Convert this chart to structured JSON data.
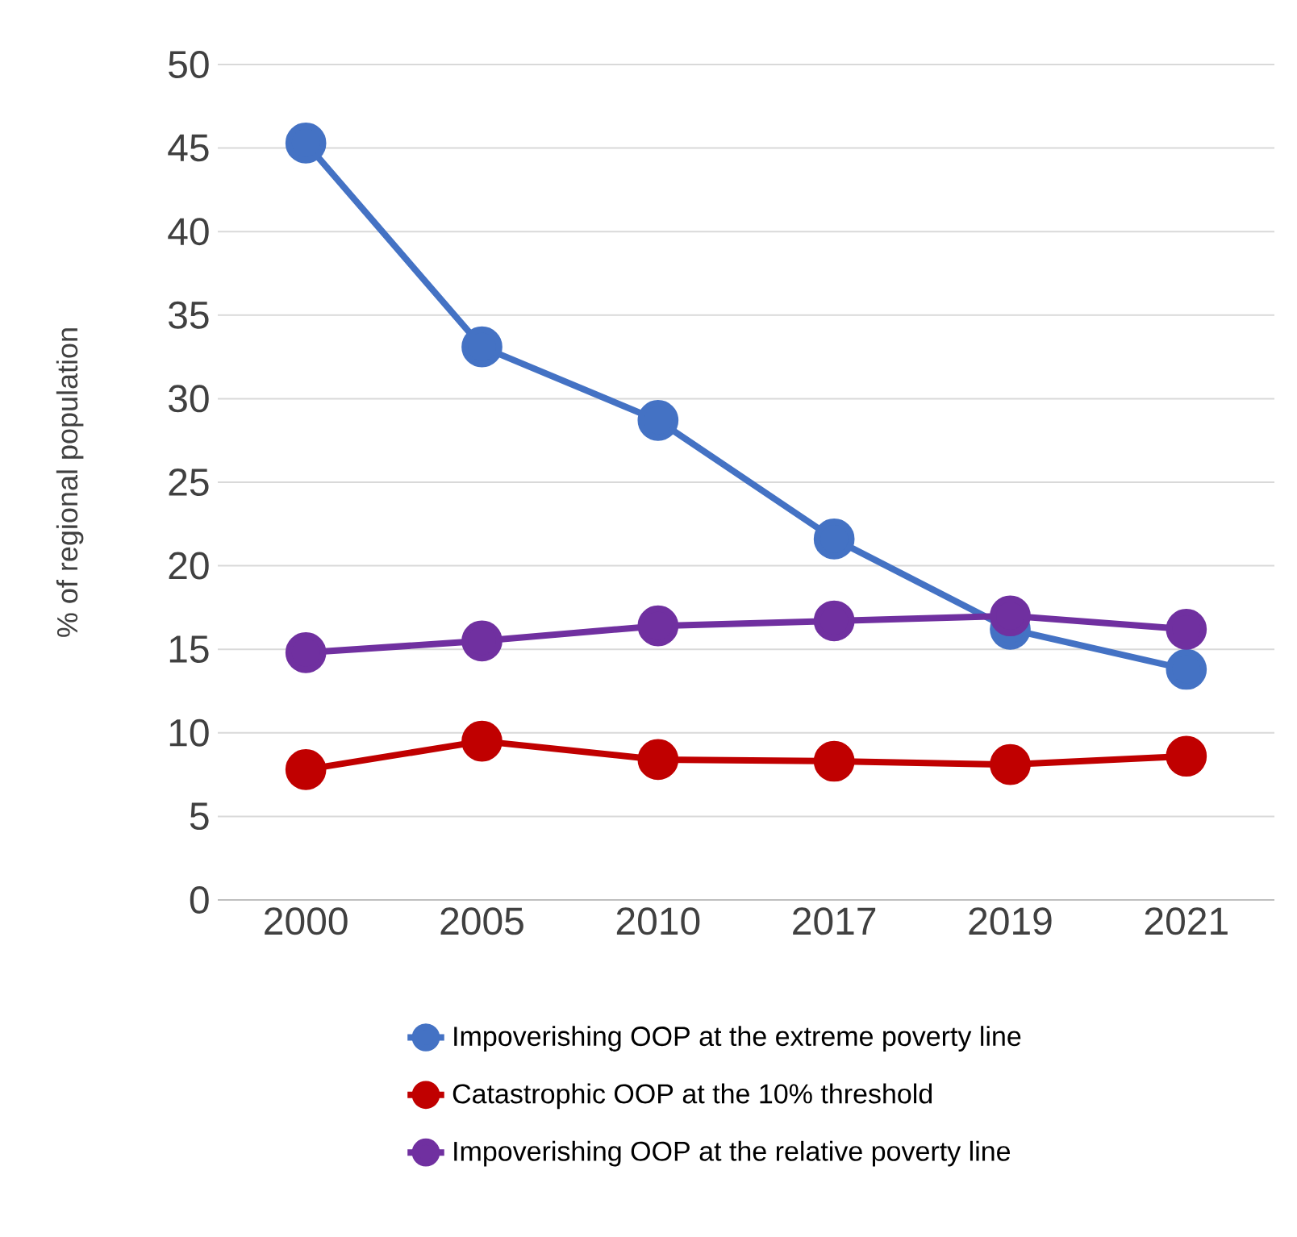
{
  "chart_data": {
    "type": "line",
    "ylabel": "% of regional population",
    "categories": [
      "2000",
      "2005",
      "2010",
      "2017",
      "2019",
      "2021"
    ],
    "series": [
      {
        "name": "Impoverishing OOP at the extreme poverty line",
        "color": "#4472c4",
        "values": [
          45.3,
          33.1,
          28.7,
          21.6,
          16.2,
          13.8
        ]
      },
      {
        "name": "Catastrophic OOP at the 10% threshold",
        "color": "#c00000",
        "values": [
          7.8,
          9.5,
          8.4,
          8.3,
          8.1,
          8.6
        ]
      },
      {
        "name": "Impoverishing OOP at the relative poverty line",
        "color": "#7030a0",
        "values": [
          14.8,
          15.5,
          16.4,
          16.7,
          17.0,
          16.2
        ]
      }
    ],
    "ylim": [
      0,
      50
    ],
    "yticks": [
      0,
      5,
      10,
      15,
      20,
      25,
      30,
      35,
      40,
      45,
      50
    ],
    "grid": "y",
    "legend": "bottom",
    "marker": "circle",
    "line_style": "solid"
  }
}
